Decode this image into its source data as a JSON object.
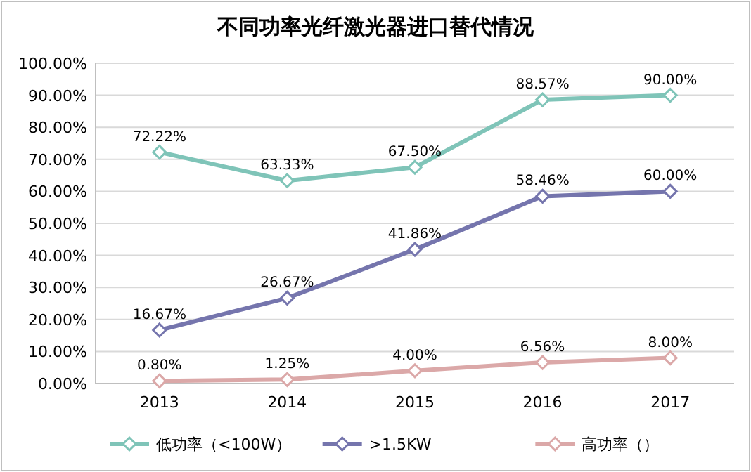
{
  "chart_data": {
    "type": "line",
    "title": "不同功率光纤激光器进口替代情况",
    "categories": [
      "2013",
      "2014",
      "2015",
      "2016",
      "2017"
    ],
    "series": [
      {
        "name": "低功率（<100W）",
        "color": "#7fc4b8",
        "values": [
          72.22,
          63.33,
          67.5,
          88.57,
          90
        ],
        "value_labels": [
          "72.22%",
          "63.33%",
          "67.50%",
          "88.57%",
          "90.00%"
        ]
      },
      {
        "name": ">1.5KW",
        "color": "#7575ad",
        "values": [
          16.67,
          26.67,
          41.86,
          58.46,
          60
        ],
        "value_labels": [
          "16.67%",
          "26.67%",
          "41.86%",
          "58.46%",
          "60.00%"
        ]
      },
      {
        "name": "高功率（）",
        "color": "#dba8a8",
        "values": [
          0.8,
          1.25,
          4,
          6.56,
          8
        ],
        "value_labels": [
          "0.80%",
          "1.25%",
          "4.00%",
          "6.56%",
          "8.00%"
        ]
      }
    ],
    "ylim": [
      0,
      100
    ],
    "yticks": [
      {
        "value": 0,
        "label": "0.00%"
      },
      {
        "value": 10,
        "label": "10.00%"
      },
      {
        "value": 20,
        "label": "20.00%"
      },
      {
        "value": 30,
        "label": "30.00%"
      },
      {
        "value": 40,
        "label": "40.00%"
      },
      {
        "value": 50,
        "label": "50.00%"
      },
      {
        "value": 60,
        "label": "60.00%"
      },
      {
        "value": 70,
        "label": "70.00%"
      },
      {
        "value": 80,
        "label": "80.00%"
      },
      {
        "value": 90,
        "label": "90.00%"
      },
      {
        "value": 100,
        "label": "100.00%"
      }
    ],
    "grid": "y",
    "legend": "bottom",
    "marker": "diamond",
    "line_style": "solid"
  }
}
